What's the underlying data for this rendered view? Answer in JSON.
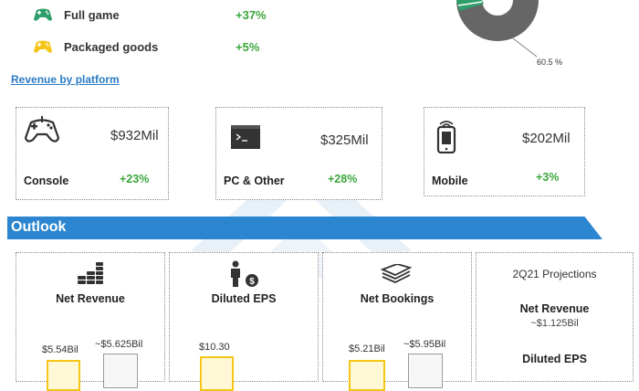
{
  "segments": {
    "full_game": {
      "label": "Full game",
      "growth": "+37%",
      "icon": "gamepad-icon",
      "color": "#2e9e6a"
    },
    "packaged_goods": {
      "label": "Packaged goods",
      "growth": "+5%",
      "icon": "gamepad-icon",
      "color": "#f5c518"
    }
  },
  "donut": {
    "slice_label": "60.5 %",
    "colors": {
      "main": "#666666",
      "accent": "#2e9e6a"
    }
  },
  "platform_section": {
    "link_label": "Revenue by platform"
  },
  "platforms": [
    {
      "name": "Console",
      "value": "$932Mil",
      "growth": "+23%",
      "icon": "gamepad-icon"
    },
    {
      "name": "PC & Other",
      "value": "$325Mil",
      "growth": "+28%",
      "icon": "terminal-icon"
    },
    {
      "name": "Mobile",
      "value": "$202Mil",
      "growth": "+3%",
      "icon": "mobile-phone-icon"
    }
  ],
  "outlook": {
    "title": "Outlook",
    "cards": [
      {
        "title": "Net Revenue",
        "icon": "coins-icon",
        "left_value": "$5.54Bil",
        "right_value": "~$5.625Bil"
      },
      {
        "title": "Diluted EPS",
        "icon": "person-dollar-icon",
        "left_value": "$10.30",
        "right_value": ""
      },
      {
        "title": "Net Bookings",
        "icon": "cash-stack-icon",
        "left_value": "$5.21Bil",
        "right_value": "~$5.95Bil"
      }
    ],
    "projections": {
      "title": "2Q21 Projections",
      "net_revenue_label": "Net Revenue",
      "net_revenue_value": "~$1.125Bil",
      "eps_label": "Diluted EPS"
    }
  },
  "colors": {
    "accent_blue": "#2b86cf",
    "growth_green": "#3ca63c",
    "bar_yellow": "#f5c518"
  }
}
